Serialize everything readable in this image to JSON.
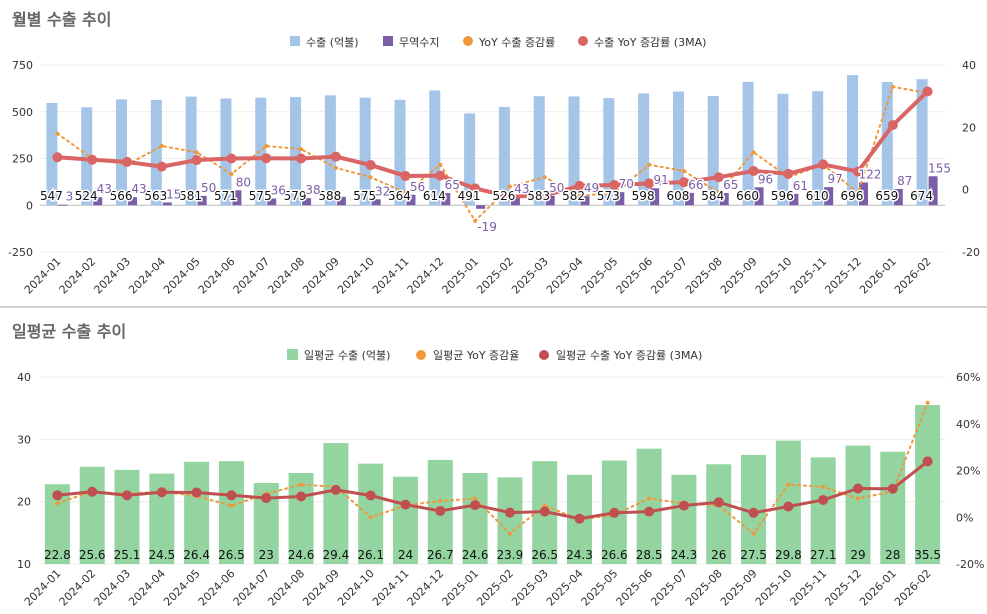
{
  "colors": {
    "export_bar": "#a4c4e8",
    "trade_bar": "#7a5ea8",
    "yoy_dot": "#f0983a",
    "yoy_ma": "#d96565",
    "daily_bar": "#93d4a1",
    "daily_yoy_dot": "#f0983a",
    "daily_yoy_ma": "#c05050"
  },
  "chart_data": [
    {
      "type": "bar",
      "title": "월별 수출 추이",
      "categories": [
        "2024-01",
        "2024-02",
        "2024-03",
        "2024-04",
        "2024-05",
        "2024-06",
        "2024-07",
        "2024-08",
        "2024-09",
        "2024-10",
        "2024-11",
        "2024-12",
        "2025-01",
        "2025-02",
        "2025-03",
        "2025-04",
        "2025-05",
        "2025-06",
        "2025-07",
        "2025-08",
        "2025-09",
        "2025-10",
        "2025-11",
        "2025-12",
        "2026-01",
        "2026-02"
      ],
      "series": [
        {
          "name": "수출 (억불)",
          "type": "bar",
          "axis": "left",
          "values": [
            547,
            524,
            566,
            563,
            581,
            571,
            575,
            579,
            588,
            575,
            564,
            614,
            491,
            526,
            583,
            582,
            573,
            598,
            608,
            584,
            660,
            596,
            610,
            696,
            659,
            674
          ]
        },
        {
          "name": "무역수지",
          "type": "bar",
          "axis": "left",
          "values": [
            3,
            43,
            43,
            15,
            50,
            80,
            36,
            38,
            45,
            32,
            56,
            65,
            -19,
            43,
            50,
            49,
            70,
            91,
            66,
            65,
            96,
            61,
            97,
            122,
            87,
            155
          ]
        },
        {
          "name": "YoY 수출 증감률",
          "type": "line",
          "axis": "right",
          "style": "dotted",
          "values": [
            18,
            10,
            8,
            14,
            12,
            5,
            14,
            13,
            7,
            4,
            -1,
            8,
            -10,
            1,
            4,
            -2,
            -1,
            8,
            6,
            -1,
            12,
            4,
            8,
            -1,
            33,
            31
          ]
        },
        {
          "name": "수출 YoY 증감률 (3MA)",
          "type": "line",
          "axis": "right",
          "style": "solid",
          "values": [
            10.4,
            9.6,
            8.9,
            7.4,
            9.5,
            10.0,
            10.1,
            10.0,
            10.6,
            7.9,
            4.4,
            4.5,
            0.4,
            -2.2,
            -1.9,
            1.2,
            1.5,
            2.0,
            2.4,
            4.0,
            6.0,
            5.1,
            8.1,
            5.8,
            20.7,
            31.5
          ]
        }
      ],
      "data_labels_top": [
        "547",
        "524",
        "566",
        "563",
        "581",
        "571",
        "575",
        "579",
        "588",
        "575",
        "564",
        "614",
        "491",
        "526",
        "583",
        "582",
        "573",
        "598",
        "608",
        "584",
        "660",
        "596",
        "610",
        "696",
        "659",
        "674"
      ],
      "data_labels_trade": [
        "3",
        "43",
        "43",
        "15",
        "50",
        "80",
        "36",
        "38",
        "",
        "32",
        "56",
        "65",
        "-19",
        "43",
        "50",
        "49",
        "70",
        "91",
        "66",
        "65",
        "96",
        "61",
        "97",
        "122",
        "87",
        "155"
      ],
      "ylim_left": [
        -250,
        750
      ],
      "yticks_left": [
        "-250",
        "0",
        "250",
        "500",
        "750"
      ],
      "ylim_right": [
        -20,
        40
      ],
      "yticks_right": [
        "-20",
        "0",
        "20",
        "40"
      ],
      "legend": [
        "수출 (억불)",
        "무역수지",
        "YoY 수출 증감률",
        "수출 YoY 증감률 (3MA)"
      ],
      "legend_position": "top-center"
    },
    {
      "type": "bar",
      "title": "일평균 수출 추이",
      "categories": [
        "2024-01",
        "2024-02",
        "2024-03",
        "2024-04",
        "2024-05",
        "2024-06",
        "2024-07",
        "2024-08",
        "2024-09",
        "2024-10",
        "2024-11",
        "2024-12",
        "2025-01",
        "2025-02",
        "2025-03",
        "2025-04",
        "2025-05",
        "2025-06",
        "2025-07",
        "2025-08",
        "2025-09",
        "2025-10",
        "2025-11",
        "2025-12",
        "2026-01",
        "2026-02"
      ],
      "series": [
        {
          "name": "일평균 수출 (억불)",
          "type": "bar",
          "axis": "left",
          "values": [
            22.8,
            25.6,
            25.1,
            24.5,
            26.4,
            26.5,
            23,
            24.6,
            29.4,
            26.1,
            24,
            26.7,
            24.6,
            23.9,
            26.5,
            24.3,
            26.6,
            28.5,
            24.3,
            26,
            27.5,
            29.8,
            27.1,
            29,
            28,
            35.5
          ]
        },
        {
          "name": "일평균 YoY 증감율",
          "type": "line",
          "axis": "right",
          "style": "dotted",
          "values": [
            6,
            11,
            10,
            11,
            9,
            5,
            10,
            14,
            13,
            0,
            5,
            7,
            8,
            -7,
            5,
            -1,
            1,
            8,
            6,
            5,
            -7,
            14,
            13,
            8,
            11,
            49
          ]
        },
        {
          "name": "일평균 수출 YoY 증감률 (3MA)",
          "type": "line",
          "axis": "right",
          "style": "solid",
          "values": [
            9.4,
            10.9,
            9.4,
            10.7,
            10.6,
            9.4,
            8.2,
            8.9,
            11.7,
            9.3,
            5.4,
            2.7,
            5.2,
            2.0,
            2.4,
            -0.6,
            1.9,
            2.4,
            5.0,
            6.4,
            1.9,
            4.6,
            7.4,
            12.3,
            12.2,
            23.9
          ]
        }
      ],
      "data_labels": [
        "22.8",
        "25.6",
        "25.1",
        "24.5",
        "26.4",
        "26.5",
        "23",
        "24.6",
        "29.4",
        "26.1",
        "24",
        "26.7",
        "24.6",
        "23.9",
        "26.5",
        "24.3",
        "26.6",
        "28.5",
        "24.3",
        "26",
        "27.5",
        "29.8",
        "27.1",
        "29",
        "28",
        "35.5"
      ],
      "ylim_left": [
        10,
        40
      ],
      "yticks_left": [
        "10",
        "20",
        "30",
        "40"
      ],
      "ylim_right": [
        -20,
        60
      ],
      "yticks_right": [
        "-20%",
        "0%",
        "20%",
        "40%",
        "60%"
      ],
      "legend": [
        "일평균 수출 (억불)",
        "일평균 YoY 증감율",
        "일평균 수출 YoY 증감률 (3MA)"
      ],
      "legend_position": "top-center"
    }
  ]
}
